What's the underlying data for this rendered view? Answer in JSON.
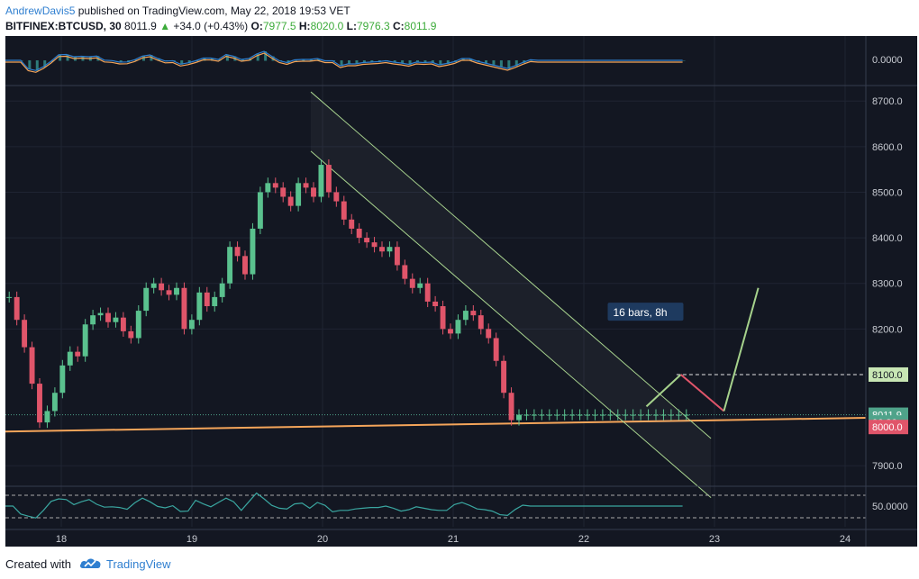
{
  "header": {
    "author": "AndrewDavis5",
    "published_text": "published on TradingView.com, May 22, 2018 19:53 VET",
    "symbol": "BITFINEX:BTCUSD, 30",
    "last": "8011.9",
    "arrow": "▲",
    "change": "+34.0 (+0.43%)",
    "o_label": "O:",
    "o_val": "7977.5",
    "h_label": "H:",
    "h_val": "8020.0",
    "l_label": "L:",
    "l_val": "7976.3",
    "c_label": "C:",
    "c_val": "8011.9"
  },
  "footer": {
    "created_with": "Created with",
    "brand": "TradingView"
  },
  "colors": {
    "background": "#131722",
    "up": "#5ac18e",
    "down": "#e0556a",
    "support": "#f5a55a",
    "channel": "#a6d28c",
    "grid": "#1f2433",
    "label_green": "#c8e6b4",
    "label_red": "#e0556a",
    "label_price": "#4fa38a"
  },
  "chart_data": {
    "type": "candlestick",
    "symbol": "BITFINEX:BTCUSD",
    "interval": "30",
    "x_ticks": [
      "18",
      "19",
      "20",
      "21",
      "22",
      "23",
      "24"
    ],
    "y_ticks": [
      "8700.0",
      "8600.0",
      "8500.0",
      "8400.0",
      "8300.0",
      "8200.0",
      "7900.0"
    ],
    "ylim": [
      7855,
      8730
    ],
    "price_labels": {
      "last": "8011.9",
      "countdown": "06:36",
      "target": "8100.0",
      "support": "8000.0"
    },
    "annotation": "16 bars, 8h",
    "macd_label": "0.0000",
    "rsi_label": "50.0000",
    "series": [
      {
        "name": "Close",
        "x": [
          0,
          6,
          12,
          18,
          24,
          30,
          36,
          42,
          48,
          54,
          60,
          66,
          72,
          78,
          84,
          90,
          96,
          102,
          108,
          114,
          120,
          126,
          132,
          138,
          144,
          150,
          156,
          162,
          168,
          174,
          180,
          186,
          192,
          198,
          204,
          210,
          216,
          222,
          228,
          234,
          240,
          246,
          252,
          258,
          264,
          270,
          276,
          282,
          288,
          294,
          300,
          306,
          312,
          318,
          324,
          330,
          336,
          342,
          348,
          354,
          360,
          366,
          372,
          378,
          384,
          390,
          396,
          402,
          408,
          414,
          420,
          426,
          432,
          438,
          444,
          450,
          456,
          462,
          468,
          474,
          480,
          486,
          492,
          498,
          504,
          510,
          516,
          522,
          528,
          534
        ],
        "y": [
          8270,
          8220,
          8160,
          8080,
          7995,
          8020,
          8060,
          8120,
          8150,
          8140,
          8210,
          8230,
          8235,
          8215,
          8225,
          8195,
          8180,
          8240,
          8290,
          8300,
          8285,
          8275,
          8290,
          8200,
          8220,
          8280,
          8250,
          8270,
          8300,
          8380,
          8360,
          8320,
          8420,
          8500,
          8520,
          8510,
          8490,
          8470,
          8520,
          8510,
          8490,
          8560,
          8500,
          8480,
          8440,
          8420,
          8400,
          8390,
          8380,
          8370,
          8380,
          8340,
          8310,
          8290,
          8300,
          8260,
          8250,
          8200,
          8190,
          8220,
          8240,
          8230,
          8200,
          8180,
          8130,
          8060,
          8000,
          8011.9,
          8011.9,
          8011.9,
          8011.9,
          8011.9,
          8011.9,
          8011.9,
          8011.9,
          8011.9,
          8011.9,
          8011.9,
          8011.9,
          8011.9,
          8011.9,
          8011.9,
          8011.9,
          8011.9,
          8011.9,
          8011.9,
          8011.9,
          8011.9,
          8011.9,
          8011.9
        ]
      }
    ],
    "lines": [
      {
        "name": "support",
        "p1": [
          0,
          7975
        ],
        "p2": [
          1,
          8005
        ]
      },
      {
        "name": "channel_upper",
        "p1": [
          0.355,
          8720
        ],
        "p2": [
          0.82,
          7960
        ]
      },
      {
        "name": "channel_lower",
        "p1": [
          0.355,
          8590
        ],
        "p2": [
          0.82,
          7830
        ]
      }
    ],
    "projections": [
      {
        "name": "bounce",
        "from": [
          0.745,
          8030
        ],
        "to": [
          0.785,
          8100
        ]
      },
      {
        "name": "drop",
        "from": [
          0.785,
          8100
        ],
        "to": [
          0.835,
          8020
        ]
      },
      {
        "name": "rally",
        "from": [
          0.835,
          8020
        ],
        "to": [
          0.875,
          8290
        ]
      }
    ]
  }
}
